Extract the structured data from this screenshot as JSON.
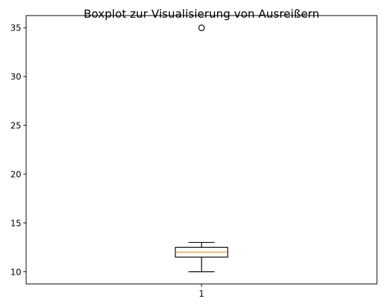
{
  "chart_data": {
    "type": "boxplot",
    "title": "Boxplot zur Visualisierung von Ausreißern",
    "xlabel": "",
    "ylabel": "",
    "categories": [
      "1"
    ],
    "boxes": [
      {
        "category": "1",
        "whisker_low": 10,
        "q1": 11.5,
        "median": 12,
        "q3": 12.5,
        "whisker_high": 13,
        "outliers": [
          35
        ]
      }
    ],
    "yticks": [
      10,
      15,
      20,
      25,
      30,
      35
    ],
    "ylim": [
      8.75,
      36.25
    ],
    "grid": false,
    "colors": {
      "box": "#000000",
      "median": "#ff7f0e",
      "whisker": "#000000",
      "outlier": "#000000"
    }
  }
}
